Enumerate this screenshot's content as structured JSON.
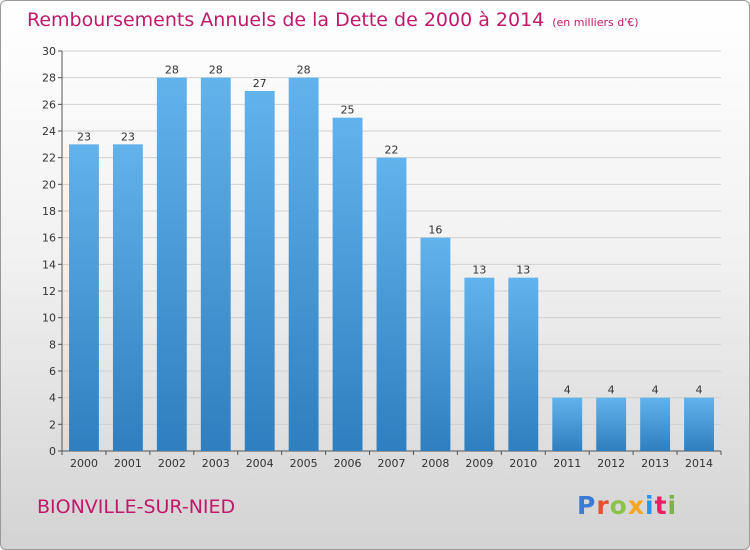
{
  "header": {
    "title": "Remboursements Annuels de la Dette de 2000 à 2014",
    "unit": "(en milliers d'€)"
  },
  "footer": {
    "commune": "BIONVILLE-SUR-NIED",
    "logo_text": "Proxiti",
    "logo_colors": [
      "#3a7bd5",
      "#e8502f",
      "#8bc34a",
      "#f5a623",
      "#2196f3",
      "#e91e63",
      "#7cb342"
    ]
  },
  "colors": {
    "bar_light": "#62b2ec",
    "bar_dark": "#2f7fc0",
    "title": "#c2186b",
    "grid": "#d0d0d0"
  },
  "chart_data": {
    "type": "bar",
    "title": "Remboursements Annuels de la Dette de 2000 à 2014",
    "ylim": [
      0,
      30
    ],
    "yticks": [
      0,
      2,
      4,
      6,
      8,
      10,
      12,
      14,
      16,
      18,
      20,
      22,
      24,
      26,
      28,
      30
    ],
    "categories": [
      "2000",
      "2001",
      "2002",
      "2003",
      "2004",
      "2005",
      "2006",
      "2007",
      "2008",
      "2009",
      "2010",
      "2011",
      "2012",
      "2013",
      "2014"
    ],
    "values": [
      23,
      23,
      28,
      28,
      27,
      28,
      25,
      22,
      16,
      13,
      13,
      4,
      4,
      4,
      4
    ],
    "grid": true
  }
}
